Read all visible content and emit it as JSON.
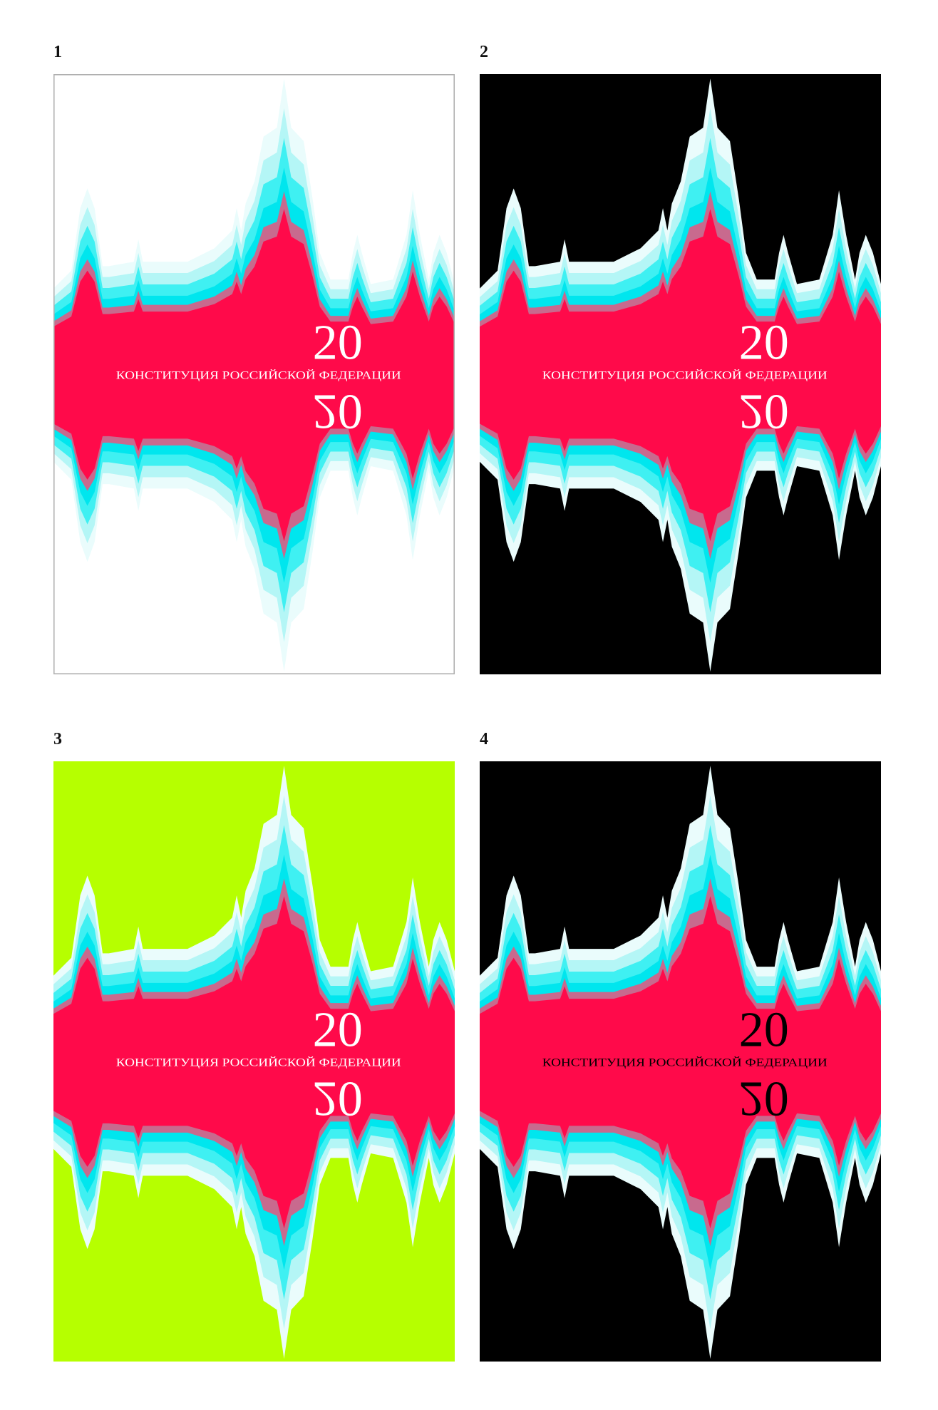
{
  "panels": [
    {
      "label": "1",
      "number_top": "20",
      "subtitle": "КОНСТИТУЦИЯ РОССИЙСКОЙ ФЕДЕРАЦИИ",
      "number_bottom": "20",
      "background": "#ffffff",
      "text_color": "#ffffff",
      "border": true
    },
    {
      "label": "2",
      "number_top": "20",
      "subtitle": "КОНСТИТУЦИЯ РОССИЙСКОЙ ФЕДЕРАЦИИ",
      "number_bottom": "20",
      "background": "#000000",
      "text_color": "#ffffff",
      "border": false
    },
    {
      "label": "3",
      "number_top": "20",
      "subtitle": "КОНСТИТУЦИЯ РОССИЙСКОЙ ФЕДЕРАЦИИ",
      "number_bottom": "20",
      "background": "#b6ff00",
      "text_color": "#ffffff",
      "border": false
    },
    {
      "label": "4",
      "number_top": "20",
      "subtitle": "КОНСТИТУЦИЯ РОССИЙСКОЙ ФЕДЕРАЦИИ",
      "number_bottom": "20",
      "background": "#000000",
      "text_color": "#000000",
      "border": false
    }
  ]
}
